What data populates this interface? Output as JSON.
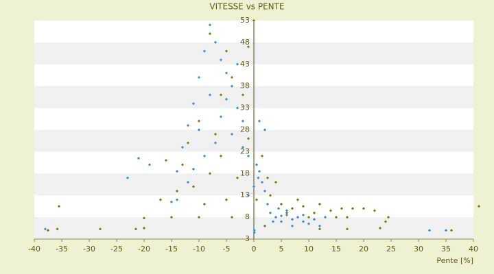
{
  "chart_data": {
    "type": "scatter",
    "title": "VITESSE vs PENTE",
    "x_label": "Pente [%]",
    "xlim": [
      -40,
      40
    ],
    "xticks": [
      -40,
      -35,
      -30,
      -25,
      -20,
      -15,
      -10,
      -5,
      0,
      5,
      10,
      15,
      20,
      25,
      30,
      35,
      40
    ],
    "ylim": [
      3,
      53
    ],
    "yticks": [
      3,
      8,
      13,
      18,
      23,
      28,
      33,
      38,
      43,
      48,
      53
    ],
    "banded_grid": true,
    "series": [
      {
        "name": "blue",
        "color": "#3b8fd8",
        "x": [
          -38,
          -23,
          -21,
          -19,
          -15,
          -14,
          -13,
          -12,
          -11,
          -10,
          -9,
          -8,
          -7,
          -6,
          -5,
          -4,
          -5,
          -6,
          -3,
          -2,
          -4,
          -7,
          -9,
          -2,
          -1,
          0.5,
          1,
          0.8,
          1.5,
          0,
          -1,
          2,
          2.5,
          3,
          4,
          5,
          6,
          7,
          8,
          9,
          10,
          4.5,
          6,
          3.5,
          11,
          12,
          7,
          9,
          13,
          5,
          1,
          2,
          -3,
          -8,
          -10,
          32,
          35,
          0.1,
          0.1,
          -11,
          -12,
          -14
        ],
        "values": [
          5.3,
          17,
          21.5,
          20,
          11.5,
          18.5,
          24,
          29,
          34,
          40,
          46,
          52,
          48,
          44,
          41,
          38,
          35,
          31,
          33,
          30,
          27,
          25,
          22,
          24,
          22,
          20,
          18.5,
          17,
          16,
          15,
          13,
          14,
          11,
          9,
          8,
          7,
          8.5,
          7.5,
          8,
          7,
          6.5,
          10,
          9.5,
          7,
          7.5,
          6,
          6,
          8.5,
          8,
          8.3,
          30,
          28,
          43,
          36,
          28,
          5,
          5,
          4.5,
          5,
          19,
          16,
          12
        ]
      },
      {
        "name": "olive",
        "color": "#7d7d12",
        "x": [
          -37.5,
          -35.8,
          -35.5,
          -28,
          -21.5,
          -20,
          -17,
          -16,
          -15,
          -14,
          -13,
          -12,
          -11,
          -10,
          -9,
          -8,
          -7,
          -6,
          -5,
          -4,
          -3,
          -2,
          -1,
          0.5,
          1.5,
          2.5,
          3,
          4,
          5,
          6,
          7,
          8,
          9,
          10,
          11,
          12,
          14,
          15,
          16,
          17,
          18,
          20,
          22,
          24,
          24.5,
          23,
          41,
          36,
          12,
          17,
          -8,
          -5,
          -4,
          -6,
          0,
          -1,
          -10,
          -20,
          2
        ],
        "values": [
          5,
          5.3,
          10.5,
          5.3,
          5.3,
          7.8,
          12,
          21,
          8,
          14,
          20,
          25,
          15,
          30,
          11,
          18,
          27,
          22,
          12,
          8,
          17,
          36,
          26,
          12,
          22,
          17,
          13,
          16,
          11,
          9,
          10,
          12,
          10.5,
          8,
          9,
          11,
          9.5,
          8,
          10,
          8,
          10,
          10,
          9.5,
          7,
          8,
          5.5,
          10.5,
          5,
          5.3,
          5.3,
          50,
          46,
          40,
          36,
          53,
          47,
          8,
          5.5,
          6
        ]
      }
    ]
  }
}
